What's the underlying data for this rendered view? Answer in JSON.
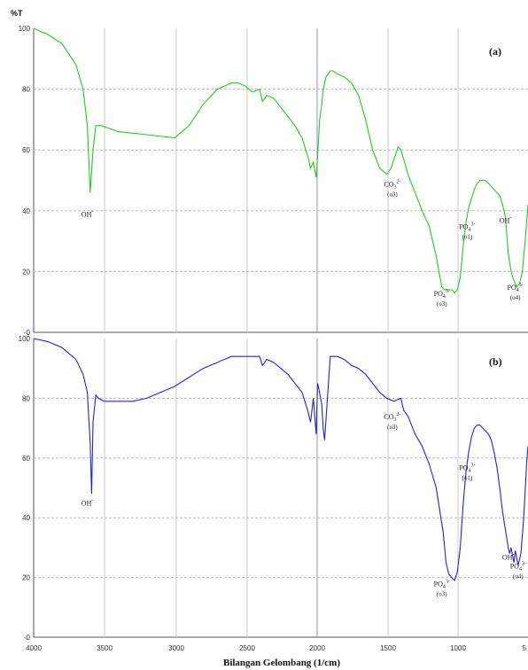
{
  "y_axis_title": "%T",
  "x_axis_title": "Bilangan Gelombang (1/cm)",
  "chart_data": [
    {
      "panel": "(a)",
      "type": "line",
      "color": "#22cc22",
      "xlim": [
        4000,
        500
      ],
      "ylim": [
        0,
        100
      ],
      "x_ticks": [
        "4000",
        "3500",
        "3000",
        "2500",
        "2000",
        "1500",
        "1000",
        "5"
      ],
      "y_ticks": [
        "100",
        "80",
        "60",
        "40",
        "20",
        "-0"
      ],
      "series": [
        {
          "x": [
            4000,
            3900,
            3800,
            3700,
            3650,
            3620,
            3600,
            3580,
            3560,
            3520,
            3400,
            3200,
            3000,
            2900,
            2800,
            2700,
            2600,
            2550,
            2500,
            2450,
            2400,
            2380,
            2350,
            2300,
            2250,
            2200,
            2150,
            2100,
            2060,
            2040,
            2020,
            2000,
            1990,
            1975,
            1960,
            1950,
            1930,
            1900,
            1880,
            1850,
            1800,
            1750,
            1700,
            1650,
            1600,
            1550,
            1500,
            1470,
            1440,
            1420,
            1400,
            1380,
            1350,
            1300,
            1250,
            1200,
            1150,
            1110,
            1090,
            1070,
            1040,
            1020,
            1000,
            980,
            960,
            940,
            920,
            900,
            880,
            860,
            840,
            800,
            760,
            720,
            700,
            680,
            660,
            650,
            640,
            620,
            600,
            580,
            560,
            540,
            520,
            500
          ],
          "y": [
            100,
            98,
            95,
            88,
            80,
            68,
            46,
            60,
            68,
            68,
            66,
            65,
            64,
            68,
            75,
            80,
            82,
            82,
            81,
            79,
            80,
            76,
            78,
            77,
            74,
            71,
            68,
            64,
            58,
            54,
            56,
            51,
            58,
            70,
            75,
            80,
            84,
            86,
            86,
            85,
            84,
            82,
            78,
            70,
            60,
            54,
            52,
            54,
            58,
            61,
            60,
            57,
            52,
            46,
            40,
            35,
            25,
            15,
            14,
            14,
            14,
            13,
            14,
            18,
            28,
            36,
            41,
            44,
            47,
            49,
            50,
            50,
            48,
            46,
            45,
            42,
            38,
            32,
            26,
            20,
            17,
            15,
            16,
            20,
            30,
            42
          ]
        }
      ],
      "annotations": [
        {
          "main": "OH",
          "sup": "-",
          "sub": "",
          "x": 3620,
          "y": 38
        },
        {
          "main": "CO",
          "sup": "2-",
          "sub": "3",
          "x": 1460,
          "y": 48,
          "mode": "(υ3)"
        },
        {
          "main": "PO",
          "sup": "3-",
          "sub": "4",
          "x": 930,
          "y": 34,
          "mode": "(υ1)"
        },
        {
          "main": "OH",
          "sup": "-",
          "sub": "",
          "x": 660,
          "y": 36
        },
        {
          "main": "PO",
          "sup": "3-",
          "sub": "4",
          "x": 1110,
          "y": 12,
          "mode": "(υ3)"
        },
        {
          "main": "PO",
          "sup": "3-",
          "sub": "4",
          "x": 590,
          "y": 14,
          "mode": "(υ4)"
        }
      ]
    },
    {
      "panel": "(b)",
      "type": "line",
      "color": "#2222dd",
      "xlim": [
        4000,
        500
      ],
      "ylim": [
        0,
        100
      ],
      "x_ticks": [
        "4000",
        "3500",
        "3000",
        "2500",
        "2000",
        "1500",
        "1000",
        "5"
      ],
      "y_ticks": [
        "100",
        "80",
        "60",
        "40",
        "20",
        "-0"
      ],
      "series": [
        {
          "x": [
            4000,
            3900,
            3800,
            3700,
            3650,
            3620,
            3600,
            3590,
            3580,
            3560,
            3540,
            3500,
            3400,
            3300,
            3200,
            3000,
            2800,
            2600,
            2500,
            2400,
            2380,
            2350,
            2300,
            2200,
            2100,
            2060,
            2040,
            2020,
            2000,
            1990,
            1980,
            1960,
            1950,
            1940,
            1920,
            1900,
            1850,
            1800,
            1750,
            1700,
            1650,
            1600,
            1550,
            1500,
            1450,
            1400,
            1380,
            1350,
            1300,
            1250,
            1200,
            1150,
            1100,
            1080,
            1060,
            1040,
            1020,
            1000,
            980,
            960,
            940,
            920,
            900,
            880,
            860,
            840,
            820,
            800,
            780,
            760,
            740,
            720,
            700,
            680,
            660,
            650,
            640,
            630,
            620,
            600,
            590,
            570,
            550,
            530,
            510,
            500
          ],
          "y": [
            100,
            99,
            97,
            93,
            88,
            82,
            65,
            48,
            72,
            81,
            80,
            79,
            79,
            79,
            80,
            84,
            90,
            94,
            94,
            94,
            91,
            93,
            92,
            88,
            82,
            76,
            72,
            80,
            68,
            85,
            83,
            78,
            70,
            66,
            80,
            94,
            94,
            93,
            91,
            90,
            88,
            85,
            82,
            80,
            79,
            80,
            76,
            74,
            68,
            64,
            58,
            50,
            35,
            25,
            21,
            20,
            19,
            22,
            30,
            44,
            55,
            62,
            67,
            70,
            71,
            71,
            70,
            69,
            68,
            66,
            62,
            57,
            50,
            42,
            36,
            33,
            30,
            28,
            30,
            25,
            29,
            24,
            28,
            40,
            58,
            64
          ]
        }
      ],
      "annotations": [
        {
          "main": "OH",
          "sup": "-",
          "sub": "",
          "x": 3620,
          "y": 44
        },
        {
          "main": "CO",
          "sup": "2-",
          "sub": "3",
          "x": 1460,
          "y": 73,
          "mode": "(υ3)"
        },
        {
          "main": "PO",
          "sup": "3-",
          "sub": "4",
          "x": 930,
          "y": 56,
          "mode": "(υ1)"
        },
        {
          "main": "OH",
          "sup": "-",
          "sub": "",
          "x": 640,
          "y": 26
        },
        {
          "main": "PO",
          "sup": "3-",
          "sub": "4",
          "x": 1110,
          "y": 17,
          "mode": "(υ3)"
        },
        {
          "main": "PO",
          "sup": "3-",
          "sub": "4",
          "x": 570,
          "y": 23,
          "mode": "(υ4)"
        }
      ]
    }
  ]
}
